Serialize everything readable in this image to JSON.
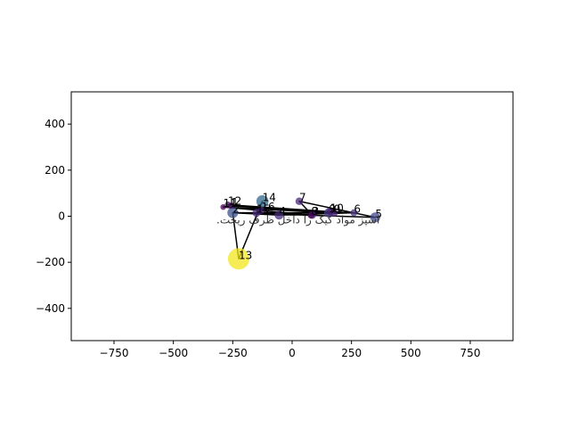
{
  "chart_data": {
    "type": "scatter",
    "title": "",
    "xlabel": "",
    "ylabel": "",
    "xlim": [
      -930,
      930
    ],
    "ylim": [
      -540,
      540
    ],
    "xticks": [
      -750,
      -500,
      -250,
      0,
      250,
      500,
      750
    ],
    "yticks": [
      -400,
      -200,
      0,
      200,
      400
    ],
    "xtick_labels": [
      "−750",
      "−500",
      "−250",
      "0",
      "250",
      "500",
      "750"
    ],
    "ytick_labels": [
      "−400",
      "−200",
      "0",
      "200",
      "400"
    ],
    "grid": false,
    "annotation": "اسپز مواد کیک را داخل ظرف ریخت.",
    "line_color": "#000000",
    "points": [
      {
        "label": "0",
        "x": 175,
        "y": 15,
        "size": 40,
        "color": "#482475"
      },
      {
        "label": "1",
        "x": -255,
        "y": 45,
        "size": 25,
        "color": "#440154"
      },
      {
        "label": "2",
        "x": -250,
        "y": 15,
        "size": 70,
        "color": "#3b528b"
      },
      {
        "label": "3",
        "x": 85,
        "y": 5,
        "size": 35,
        "color": "#46337f"
      },
      {
        "label": "4",
        "x": -55,
        "y": 5,
        "size": 50,
        "color": "#472d7b"
      },
      {
        "label": "5",
        "x": 350,
        "y": -5,
        "size": 60,
        "color": "#3e4989"
      },
      {
        "label": "6",
        "x": 260,
        "y": 15,
        "size": 30,
        "color": "#46327e"
      },
      {
        "label": "7",
        "x": 30,
        "y": 65,
        "size": 35,
        "color": "#482878"
      },
      {
        "label": "8",
        "x": 80,
        "y": 5,
        "size": 30,
        "color": "#440154"
      },
      {
        "label": "9",
        "x": 155,
        "y": 15,
        "size": 55,
        "color": "#433e85"
      },
      {
        "label": "10",
        "x": 160,
        "y": 20,
        "size": 30,
        "color": "#481c6e"
      },
      {
        "label": "11",
        "x": -290,
        "y": 40,
        "size": 20,
        "color": "#440154"
      },
      {
        "label": "12",
        "x": -270,
        "y": 50,
        "size": 25,
        "color": "#481467"
      },
      {
        "label": "13",
        "x": -225,
        "y": -185,
        "size": 280,
        "color": "#f2e51d"
      },
      {
        "label": "14",
        "x": -125,
        "y": 65,
        "size": 90,
        "color": "#31688e"
      },
      {
        "label": "15",
        "x": -150,
        "y": 15,
        "size": 40,
        "color": "#472c7a"
      },
      {
        "label": "16",
        "x": -130,
        "y": 25,
        "size": 30,
        "color": "#482475"
      }
    ],
    "path": [
      "1",
      "0",
      "2",
      "5",
      "7",
      "3",
      "11",
      "9",
      "12",
      "10",
      "6",
      "4",
      "2",
      "13",
      "14",
      "15",
      "8",
      "16"
    ]
  }
}
